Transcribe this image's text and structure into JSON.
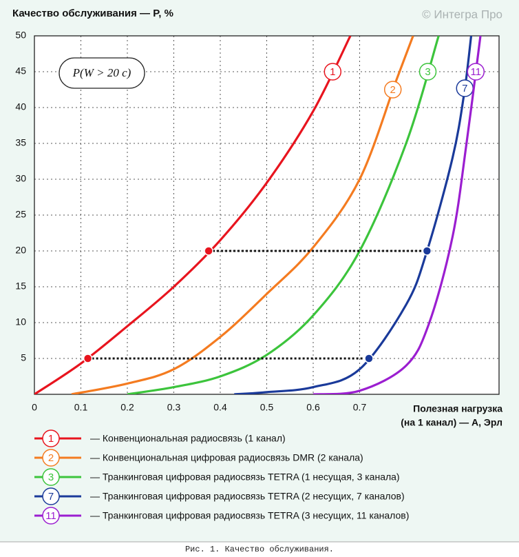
{
  "chart_data": {
    "type": "line",
    "title": "Качество обслуживания — P, %",
    "watermark": "© Интегра Про",
    "annotation": "P(W > 20 c)",
    "xlabel": [
      "Полезная нагрузка",
      "(на 1 канал) — A, Эрл"
    ],
    "caption": "Рис. 1. Качество обслуживания.",
    "xlim": [
      0,
      1
    ],
    "ylim": [
      0,
      50
    ],
    "xticks": [
      0,
      0.1,
      0.2,
      0.3,
      0.4,
      0.5,
      0.6,
      0.7
    ],
    "yticks": [
      5,
      10,
      15,
      20,
      25,
      30,
      35,
      40,
      45,
      50
    ],
    "grid": true,
    "series": [
      {
        "name": "— Конвенциональная радиосвязь (1 канал)",
        "label": "1",
        "color": "#e8141e",
        "x": [
          0,
          0.1,
          0.2,
          0.3,
          0.4,
          0.5,
          0.6,
          0.68
        ],
        "values": [
          0,
          4.3,
          9.5,
          15,
          21.5,
          29.5,
          39.5,
          50
        ]
      },
      {
        "name": "— Конвенциональная цифровая радиосвязь DMR (2 канала)",
        "label": "2",
        "color": "#f47b20",
        "x": [
          0.08,
          0.2,
          0.3,
          0.4,
          0.5,
          0.6,
          0.7,
          0.78,
          0.815
        ],
        "values": [
          0,
          1.5,
          3.5,
          8,
          14,
          20.5,
          30,
          44,
          50
        ]
      },
      {
        "name": "— Транкинговая цифровая радиосвязь TETRA (1 несущая, 3 канала)",
        "label": "3",
        "color": "#3cc43c",
        "x": [
          0.2,
          0.3,
          0.4,
          0.5,
          0.6,
          0.7,
          0.8,
          0.87
        ],
        "values": [
          0,
          1,
          2.5,
          5.5,
          11,
          20,
          35,
          50
        ]
      },
      {
        "name": "— Транкинговая цифровая радиосвязь TETRA (2 несущих, 7 каналов)",
        "label": "7",
        "color": "#1a3a9a",
        "x": [
          0.43,
          0.5,
          0.6,
          0.7,
          0.8,
          0.845,
          0.9,
          0.925,
          0.94
        ],
        "values": [
          0,
          0.3,
          1,
          3.5,
          12.5,
          20,
          33,
          42,
          50
        ]
      },
      {
        "name": "— Транкинговая цифровая радиосвязь TETRA (3 несущих, 11 каналов)",
        "label": "11",
        "color": "#9b1ed0",
        "x": [
          0.6,
          0.7,
          0.8,
          0.85,
          0.9,
          0.93,
          0.96
        ],
        "values": [
          0,
          0.5,
          4,
          10,
          22,
          35,
          50
        ]
      }
    ],
    "guides": [
      {
        "y": 20,
        "x": [
          0.375,
          0.845
        ]
      },
      {
        "y": 5,
        "x": [
          0.115,
          0.72
        ]
      }
    ]
  }
}
